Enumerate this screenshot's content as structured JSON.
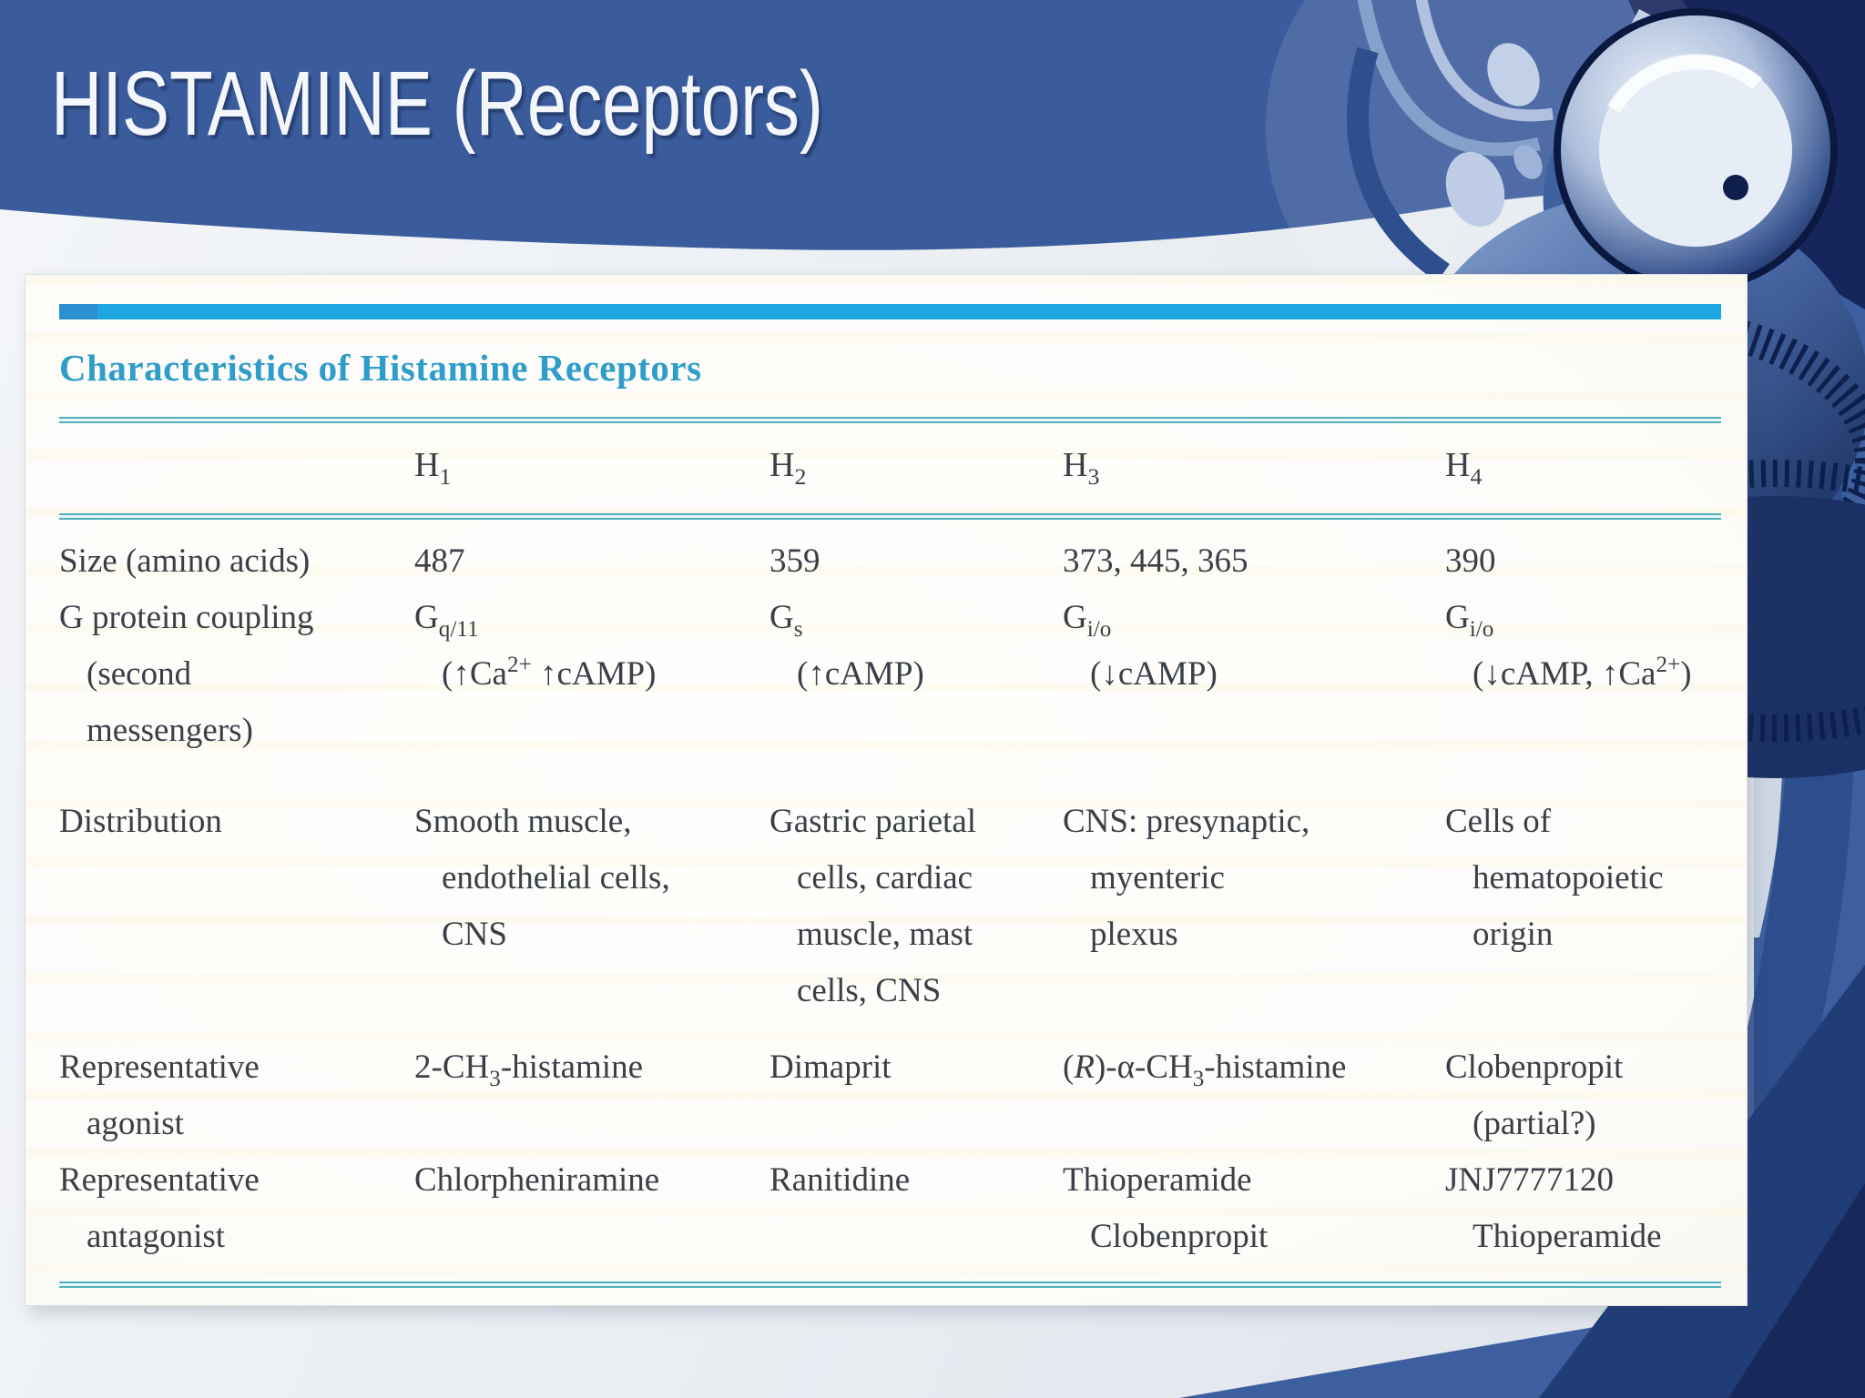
{
  "slide": {
    "title": "HISTAMINE (Receptors)"
  },
  "table": {
    "caption": "Characteristics of Histamine Receptors",
    "columns": [
      "H~1~",
      "H~2~",
      "H~3~",
      "H~4~"
    ],
    "rows": [
      {
        "label": "Size (amino acids)",
        "values": [
          "487",
          "359",
          "373, 445, 365",
          "390"
        ]
      },
      {
        "label": "G protein coupling\n(second\nmessengers)",
        "values": [
          "G~q/11~\n(↑Ca^2+^ ↑cAMP)",
          "G~s~\n(↑cAMP)",
          "G~i/o~\n(↓cAMP)",
          "G~i/o~\n(↓cAMP, ↑Ca^2+^)"
        ]
      },
      {
        "label": "Distribution",
        "values": [
          "Smooth muscle,\nendothelial cells,\nCNS",
          "Gastric parietal\ncells, cardiac\nmuscle, mast\ncells, CNS",
          "CNS: presynaptic,\nmyenteric\nplexus",
          "Cells of\nhematopoietic\norigin"
        ]
      },
      {
        "label": "Representative\nagonist",
        "values": [
          "2-CH~3~-histamine",
          "Dimaprit",
          "(*R*)-α-CH~3~-histamine",
          "Clobenpropit\n(partial?)"
        ]
      },
      {
        "label": "Representative\nantagonist",
        "values": [
          "Chlorpheniramine",
          "Ranitidine",
          "Thioperamide\nClobenpropit",
          "JNJ7777120\nThioperamide"
        ]
      }
    ]
  },
  "decor": {
    "corner_image": "stethoscope-photo"
  },
  "colors": {
    "header_blue": "#3b5c9c",
    "band_blue": "#3d5f9f",
    "navy": "#16255c",
    "wedge_navy": "#203d78",
    "wedge_deep": "#16295a",
    "cyan_bar": "#1ea6e0",
    "caption_blue": "#2f9dc9",
    "teal_rule": "#4fb0ba",
    "text_ink": "#3a4048",
    "panel_bg": "#fdfcf9",
    "backdrop": "#e9edf2"
  }
}
